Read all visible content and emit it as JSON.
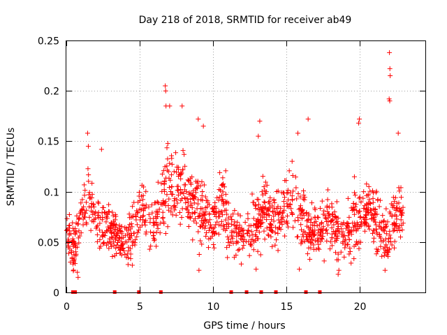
{
  "chart_data": {
    "type": "scatter",
    "title": "Day 218 of 2018, SRMTID for receiver ab49",
    "xlabel": "GPS time / hours",
    "ylabel": "SRMTID / TECUs",
    "xlim": [
      0,
      24.5
    ],
    "ylim": [
      0,
      0.25
    ],
    "xticks": [
      0,
      5,
      10,
      15,
      20
    ],
    "xtick_labels": [
      "0",
      "5",
      "10",
      "15",
      "20"
    ],
    "yticks": [
      0,
      0.05,
      0.1,
      0.15,
      0.2,
      0.25
    ],
    "ytick_labels": [
      "0",
      "0.05",
      "0.1",
      "0.15",
      "0.2",
      "0.25"
    ],
    "grid": true,
    "marker": "+",
    "color": "#ff0000",
    "series": [
      {
        "name": "SRMTID",
        "trend": {
          "x": [
            0.0,
            0.3,
            0.6,
            1.0,
            1.5,
            2.0,
            2.5,
            3.0,
            3.5,
            4.0,
            4.5,
            5.0,
            5.5,
            6.0,
            6.5,
            7.0,
            7.5,
            8.0,
            8.5,
            9.0,
            9.5,
            10.0,
            10.5,
            11.0,
            11.5,
            12.0,
            12.5,
            13.0,
            13.5,
            14.0,
            14.5,
            15.0,
            15.5,
            16.0,
            16.5,
            17.0,
            17.5,
            18.0,
            18.5,
            19.0,
            19.5,
            20.0,
            20.5,
            21.0,
            21.5,
            22.0,
            22.5,
            23.0
          ],
          "y": [
            0.07,
            0.045,
            0.045,
            0.08,
            0.09,
            0.075,
            0.065,
            0.06,
            0.055,
            0.05,
            0.06,
            0.08,
            0.085,
            0.07,
            0.085,
            0.11,
            0.1,
            0.1,
            0.09,
            0.08,
            0.07,
            0.07,
            0.09,
            0.07,
            0.06,
            0.055,
            0.06,
            0.07,
            0.08,
            0.075,
            0.07,
            0.085,
            0.09,
            0.08,
            0.055,
            0.06,
            0.065,
            0.07,
            0.055,
            0.05,
            0.065,
            0.075,
            0.08,
            0.075,
            0.06,
            0.055,
            0.075,
            0.09
          ]
        },
        "spread": [
          0.028,
          0.028,
          0.03,
          0.028,
          0.035,
          0.03,
          0.028,
          0.025,
          0.025,
          0.022,
          0.025,
          0.03,
          0.03,
          0.028,
          0.04,
          0.045,
          0.045,
          0.04,
          0.04,
          0.035,
          0.03,
          0.03,
          0.035,
          0.03,
          0.028,
          0.028,
          0.03,
          0.03,
          0.03,
          0.03,
          0.03,
          0.035,
          0.035,
          0.035,
          0.025,
          0.025,
          0.028,
          0.03,
          0.025,
          0.025,
          0.035,
          0.035,
          0.035,
          0.035,
          0.03,
          0.03,
          0.035,
          0.035
        ],
        "count": 1400,
        "outliers": [
          {
            "x": 6.75,
            "y": 0.205
          },
          {
            "x": 6.78,
            "y": 0.2
          },
          {
            "x": 6.8,
            "y": 0.185
          },
          {
            "x": 7.05,
            "y": 0.185
          },
          {
            "x": 7.9,
            "y": 0.185
          },
          {
            "x": 9.0,
            "y": 0.172
          },
          {
            "x": 9.35,
            "y": 0.165
          },
          {
            "x": 13.2,
            "y": 0.17
          },
          {
            "x": 13.1,
            "y": 0.155
          },
          {
            "x": 16.5,
            "y": 0.172
          },
          {
            "x": 20.0,
            "y": 0.172
          },
          {
            "x": 19.95,
            "y": 0.168
          },
          {
            "x": 22.05,
            "y": 0.238
          },
          {
            "x": 22.08,
            "y": 0.222
          },
          {
            "x": 22.1,
            "y": 0.215
          },
          {
            "x": 22.03,
            "y": 0.192
          },
          {
            "x": 22.07,
            "y": 0.19
          },
          {
            "x": 22.65,
            "y": 0.158
          },
          {
            "x": 1.45,
            "y": 0.158
          },
          {
            "x": 1.5,
            "y": 0.145
          },
          {
            "x": 2.4,
            "y": 0.142
          },
          {
            "x": 15.8,
            "y": 0.158
          },
          {
            "x": 0.8,
            "y": 0.015
          },
          {
            "x": 0.75,
            "y": 0.02
          },
          {
            "x": 18.55,
            "y": 0.018
          },
          {
            "x": 18.6,
            "y": 0.022
          },
          {
            "x": 21.75,
            "y": 0.022
          },
          {
            "x": 4.5,
            "y": 0.027
          },
          {
            "x": 9.05,
            "y": 0.022
          },
          {
            "x": 12.95,
            "y": 0.023
          },
          {
            "x": 15.9,
            "y": 0.023
          }
        ]
      }
    ],
    "zero_markers_x": [
      0.45,
      0.6,
      3.3,
      4.95,
      6.45,
      11.25,
      12.3,
      13.3,
      14.3,
      16.35,
      17.3
    ]
  }
}
